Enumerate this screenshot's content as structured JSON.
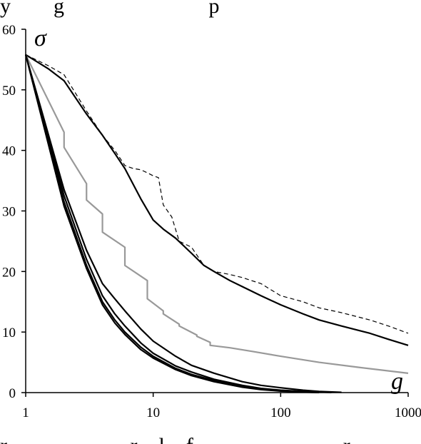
{
  "top_caption_fragment": "y        g                           p",
  "bottom_caption_fragment": "r                       r    l    f                            r",
  "chart_data": {
    "type": "line",
    "xlabel": "g",
    "ylabel": "σ",
    "x_scale": "log",
    "xlim": [
      1,
      1000
    ],
    "ylim": [
      0,
      60
    ],
    "x_ticks": [
      1,
      10,
      100,
      1000
    ],
    "x_tick_labels": [
      "1",
      "10",
      "100",
      "1000"
    ],
    "y_ticks": [
      0,
      10,
      20,
      30,
      40,
      50,
      60
    ],
    "y_tick_labels": [
      "0",
      "10",
      "20",
      "30",
      "40",
      "50",
      "60"
    ],
    "grid": false,
    "legend": "none",
    "series": [
      {
        "color": "#000000",
        "dash": "6,4",
        "width": 1.2,
        "x": [
          1,
          1.5,
          2,
          3,
          4,
          5,
          6,
          7,
          8,
          9,
          10,
          11,
          12,
          14,
          16,
          20,
          25,
          30,
          40,
          50,
          70,
          100,
          150,
          200,
          300,
          500,
          700,
          1000
        ],
        "y": [
          55.8,
          54,
          52.5,
          46.5,
          42.5,
          40,
          37.5,
          37,
          36.8,
          36.3,
          35.8,
          35.5,
          31,
          29,
          25,
          24,
          21,
          20,
          19.5,
          19,
          18,
          16,
          15,
          14,
          13.2,
          12,
          11,
          9.8
        ]
      },
      {
        "color": "#000000",
        "width": 2.2,
        "x": [
          1,
          1.5,
          2,
          3,
          4,
          5,
          6,
          8,
          10,
          12,
          15,
          20,
          25,
          30,
          40,
          50,
          70,
          100,
          150,
          200,
          300,
          500,
          700,
          1000
        ],
        "y": [
          55.8,
          53.5,
          51.5,
          46,
          42.5,
          39.5,
          37,
          32,
          28.5,
          27,
          25.5,
          23,
          21,
          20,
          18.5,
          17.5,
          16,
          14.5,
          13,
          12,
          11,
          9.8,
          8.8,
          7.8
        ]
      },
      {
        "color": "#999999",
        "width": 2.2,
        "step": true,
        "x": [
          1,
          2,
          2,
          3,
          3,
          4,
          4,
          6,
          6,
          9,
          9,
          12,
          12,
          16,
          16,
          22,
          22,
          28,
          28,
          40,
          60,
          100,
          200,
          400,
          1000
        ],
        "y": [
          55.8,
          43,
          40.5,
          34.5,
          31.8,
          29.5,
          26.5,
          24,
          21,
          18.5,
          15.5,
          13.5,
          13,
          11.3,
          11,
          9.5,
          9.3,
          8.3,
          7.8,
          7.4,
          6.8,
          6,
          5,
          4.2,
          3.2
        ]
      },
      {
        "color": "#000000",
        "width": 2.2,
        "x": [
          1,
          2,
          3,
          4,
          5,
          6,
          8,
          10,
          15,
          20,
          30,
          50,
          70,
          100,
          150,
          200,
          300
        ],
        "y": [
          55.8,
          33.5,
          23.5,
          18,
          15.5,
          13.5,
          10.5,
          8.5,
          6,
          4.5,
          3.2,
          1.8,
          1.2,
          0.8,
          0.4,
          0.2,
          0.05
        ]
      },
      {
        "color": "#000000",
        "width": 2.2,
        "x": [
          1,
          2,
          3,
          4,
          5,
          6,
          8,
          10,
          15,
          20,
          30,
          50,
          70,
          100,
          150,
          200,
          250
        ],
        "y": [
          55.8,
          32.5,
          22,
          16,
          13,
          11,
          8.2,
          6.5,
          4.4,
          3.4,
          2.2,
          1.2,
          0.7,
          0.4,
          0.2,
          0.1,
          0.02
        ]
      },
      {
        "color": "#000000",
        "width": 2.2,
        "x": [
          1,
          2,
          3,
          4,
          5,
          6,
          8,
          10,
          15,
          20,
          30,
          50,
          70,
          100,
          150,
          200
        ],
        "y": [
          55.8,
          31.5,
          21,
          15,
          12,
          10,
          7.5,
          6,
          4,
          3,
          2,
          1,
          0.6,
          0.3,
          0.1,
          0.02
        ]
      },
      {
        "color": "#000000",
        "width": 2.2,
        "x": [
          1,
          2,
          3,
          4,
          5,
          6,
          8,
          10,
          15,
          20,
          30,
          50,
          70,
          100,
          150,
          200
        ],
        "y": [
          55.8,
          30.8,
          20.5,
          14.5,
          11.5,
          9.6,
          7.1,
          5.7,
          3.8,
          2.8,
          1.8,
          0.9,
          0.5,
          0.25,
          0.08,
          0.01
        ]
      }
    ]
  }
}
